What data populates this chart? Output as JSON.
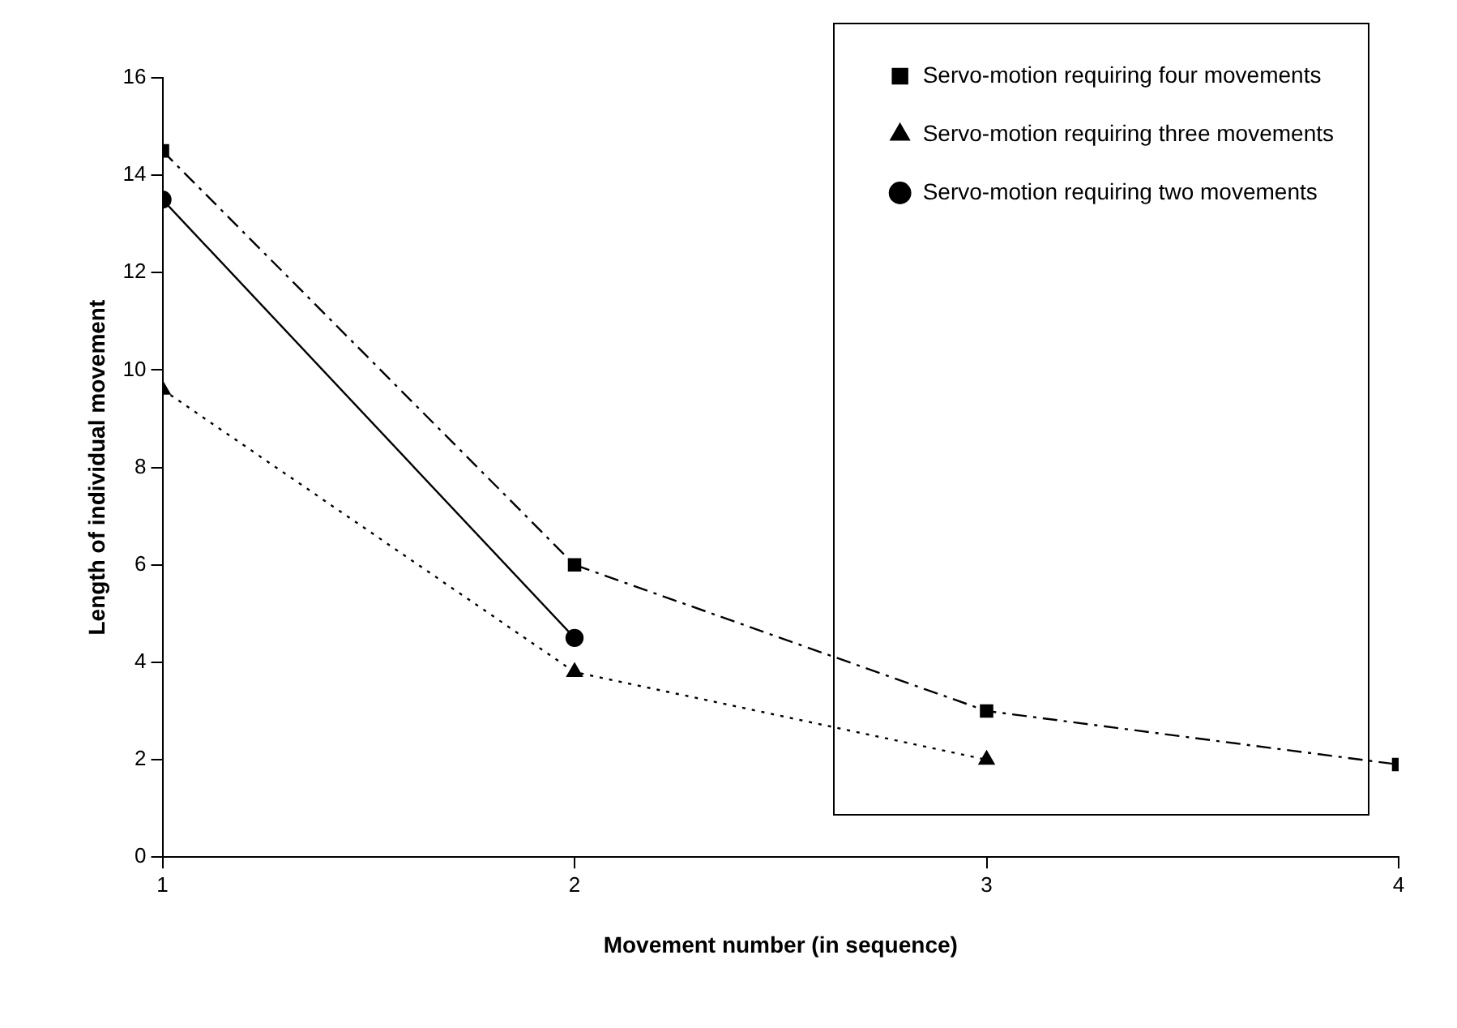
{
  "chart_data": {
    "type": "line",
    "xlabel": "Movement number (in sequence)",
    "ylabel": "Length of individual movement",
    "x": [
      1,
      2,
      3,
      4
    ],
    "xlim": [
      1,
      4
    ],
    "xticks": [
      1,
      2,
      3,
      4
    ],
    "ylim": [
      0,
      16
    ],
    "yticks": [
      0,
      2,
      4,
      6,
      8,
      10,
      12,
      14,
      16
    ],
    "grid": false,
    "legend": "top right",
    "series": [
      {
        "name": "Servo-motion requiring four movements",
        "color": "#000000",
        "values": [
          14.5,
          6.0,
          3.0,
          1.9
        ],
        "marker": "square",
        "line_style": "dashed"
      },
      {
        "name": "Servo-motion requiring three movements",
        "color": "#000000",
        "values": [
          9.6,
          3.8,
          2.0,
          null
        ],
        "marker": "triangle",
        "line_style": "dotted"
      },
      {
        "name": "Servo-motion requiring two movements",
        "color": "#000000",
        "values": [
          13.5,
          4.5,
          null,
          null
        ],
        "marker": "circle",
        "line_style": "solid"
      }
    ]
  }
}
